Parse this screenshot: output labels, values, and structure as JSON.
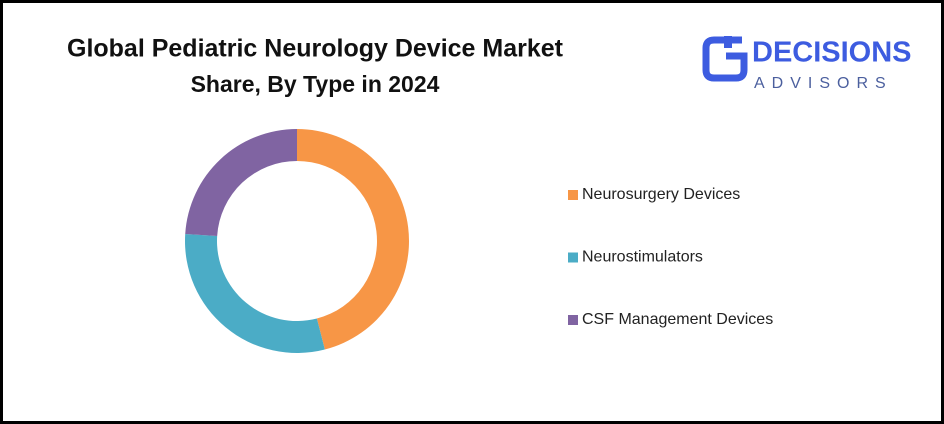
{
  "chart_data": {
    "type": "donut",
    "title": "Global Pediatric Neurology Device Market",
    "subtitle": "Share, By Type in 2024",
    "categories": [
      "Neurosurgery Devices",
      "Neurostimulators",
      "CSF Management Devices"
    ],
    "values": [
      46,
      30,
      24
    ],
    "colors": [
      "#f79646",
      "#4bacc6",
      "#8064a2"
    ],
    "legend": "right"
  },
  "logo": {
    "name": "DECISIONS",
    "tagline": "ADVISORS"
  }
}
